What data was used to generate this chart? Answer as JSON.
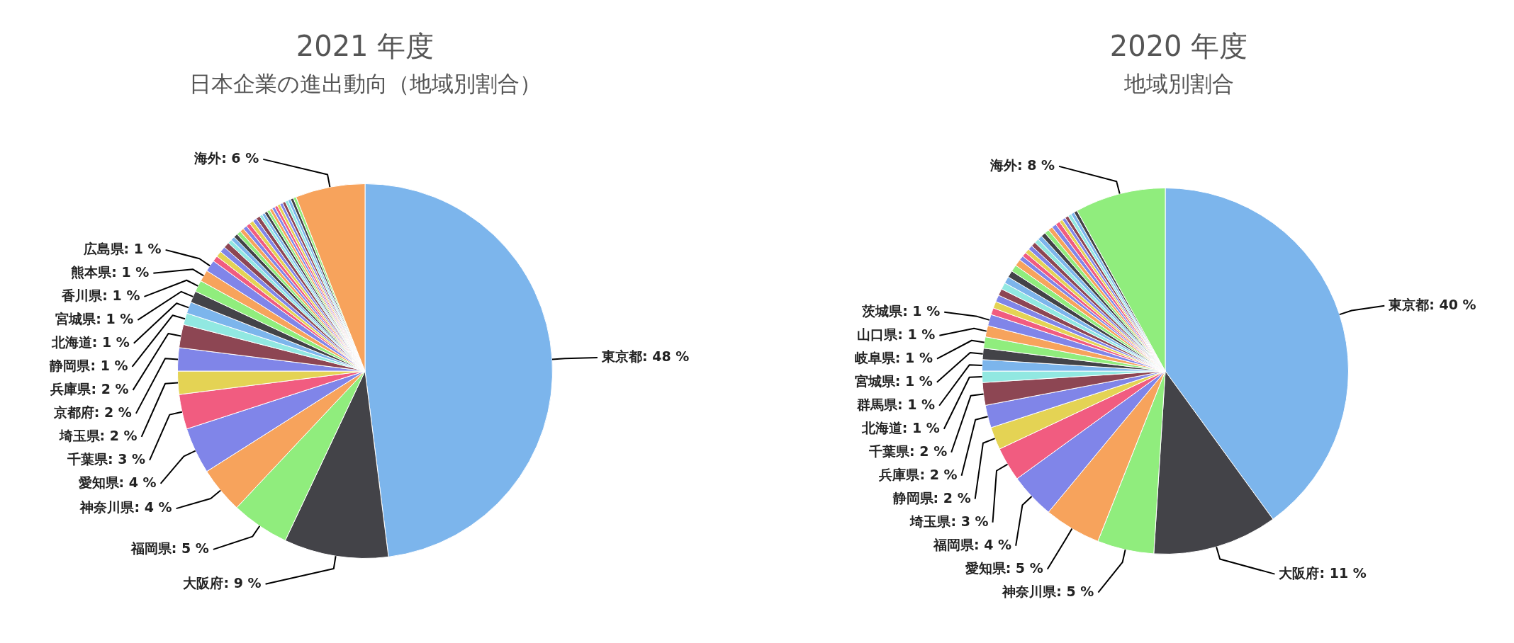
{
  "chart_data": [
    {
      "type": "pie",
      "title": "2021 年度",
      "subtitle": "日本企業の進出動向（地域別割合）",
      "categories": [
        "東京都",
        "大阪府",
        "福岡県",
        "神奈川県",
        "愛知県",
        "千葉県",
        "埼玉県",
        "京都府",
        "兵庫県",
        "静岡県",
        "北海道",
        "宮城県",
        "香川県",
        "熊本県",
        "広島県",
        null,
        null,
        null,
        null,
        null,
        null,
        null,
        null,
        null,
        null,
        null,
        null,
        null,
        null,
        null,
        null,
        null,
        null,
        null,
        null,
        null,
        null,
        null,
        null,
        null,
        null,
        null,
        null,
        "海外"
      ],
      "values": [
        48,
        9,
        5,
        4,
        4,
        3,
        2,
        2,
        2,
        1,
        1,
        1,
        1,
        1,
        1,
        0.5,
        0.5,
        0.5,
        0.5,
        0.35,
        0.35,
        0.35,
        0.35,
        0.35,
        0.35,
        0.35,
        0.35,
        0.35,
        0.35,
        0.25,
        0.25,
        0.25,
        0.25,
        0.25,
        0.25,
        0.25,
        0.25,
        0.25,
        0.25,
        0.25,
        0.25,
        0.25,
        0.25,
        6
      ],
      "value_labels": [
        "48 %",
        "9 %",
        "5 %",
        "4 %",
        "4 %",
        "3 %",
        "2 %",
        "2 %",
        "2 %",
        "1 %",
        "1 %",
        "1 %",
        "1 %",
        "1 %",
        "1 %",
        null,
        null,
        null,
        null,
        null,
        null,
        null,
        null,
        null,
        null,
        null,
        null,
        null,
        null,
        null,
        null,
        null,
        null,
        null,
        null,
        null,
        null,
        null,
        null,
        null,
        null,
        null,
        null,
        "6 %"
      ],
      "colors": [
        "#7cb5ec",
        "#434348",
        "#90ed7d",
        "#f7a35c",
        "#8085e9",
        "#f15c80",
        "#e4d354",
        "#8085e8",
        "#8d4653",
        "#91e8e1",
        "#7cb5ec",
        "#434348",
        "#90ed7d",
        "#f7a35c",
        "#8085e9",
        "#f15c80",
        "#e4d354",
        "#8085e8",
        "#8d4653",
        "#91e8e1",
        "#7cb5ec",
        "#434348",
        "#90ed7d",
        "#f7a35c",
        "#8085e9",
        "#f15c80",
        "#e4d354",
        "#8085e8",
        "#8d4653",
        "#91e8e1",
        "#7cb5ec",
        "#434348",
        "#90ed7d",
        "#f7a35c",
        "#8085e9",
        "#f15c80",
        "#e4d354",
        "#8085e8",
        "#8d4653",
        "#91e8e1",
        "#7cb5ec",
        "#434348",
        "#90ed7d",
        "#f7a35c"
      ]
    },
    {
      "type": "pie",
      "title": "2020 年度",
      "subtitle": "地域別割合",
      "categories": [
        "東京都",
        "大阪府",
        "神奈川県",
        "愛知県",
        "福岡県",
        "埼玉県",
        "静岡県",
        "兵庫県",
        "千葉県",
        "北海道",
        "群馬県",
        "宮城県",
        "岐阜県",
        "山口県",
        "茨城県",
        null,
        null,
        null,
        null,
        null,
        null,
        null,
        null,
        null,
        null,
        null,
        null,
        null,
        null,
        null,
        null,
        null,
        null,
        null,
        null,
        null,
        null,
        null,
        null,
        null,
        null,
        null,
        "海外"
      ],
      "values": [
        40,
        11,
        5,
        5,
        4,
        3,
        2,
        2,
        2,
        1,
        1,
        1,
        1,
        1,
        1,
        0.6,
        0.6,
        0.6,
        0.6,
        0.6,
        0.6,
        0.6,
        0.6,
        0.6,
        0.4,
        0.4,
        0.4,
        0.4,
        0.4,
        0.4,
        0.4,
        0.4,
        0.4,
        0.4,
        0.4,
        0.4,
        0.3,
        0.3,
        0.3,
        0.3,
        0.3,
        0.3,
        8
      ],
      "value_labels": [
        "40 %",
        "11 %",
        "5 %",
        "5 %",
        "4 %",
        "3 %",
        "2 %",
        "2 %",
        "2 %",
        "1 %",
        "1 %",
        "1 %",
        "1 %",
        "1 %",
        "1 %",
        null,
        null,
        null,
        null,
        null,
        null,
        null,
        null,
        null,
        null,
        null,
        null,
        null,
        null,
        null,
        null,
        null,
        null,
        null,
        null,
        null,
        null,
        null,
        null,
        null,
        null,
        null,
        "8 %"
      ],
      "colors": [
        "#7cb5ec",
        "#434348",
        "#90ed7d",
        "#f7a35c",
        "#8085e9",
        "#f15c80",
        "#e4d354",
        "#8085e8",
        "#8d4653",
        "#91e8e1",
        "#7cb5ec",
        "#434348",
        "#90ed7d",
        "#f7a35c",
        "#8085e9",
        "#f15c80",
        "#e4d354",
        "#8085e8",
        "#8d4653",
        "#91e8e1",
        "#7cb5ec",
        "#434348",
        "#90ed7d",
        "#f7a35c",
        "#8085e9",
        "#f15c80",
        "#e4d354",
        "#8085e8",
        "#8d4653",
        "#91e8e1",
        "#7cb5ec",
        "#434348",
        "#90ed7d",
        "#f7a35c",
        "#8085e9",
        "#f15c80",
        "#e4d354",
        "#8085e8",
        "#8d4653",
        "#91e8e1",
        "#7cb5ec",
        "#434348",
        "#90ed7d"
      ]
    }
  ]
}
